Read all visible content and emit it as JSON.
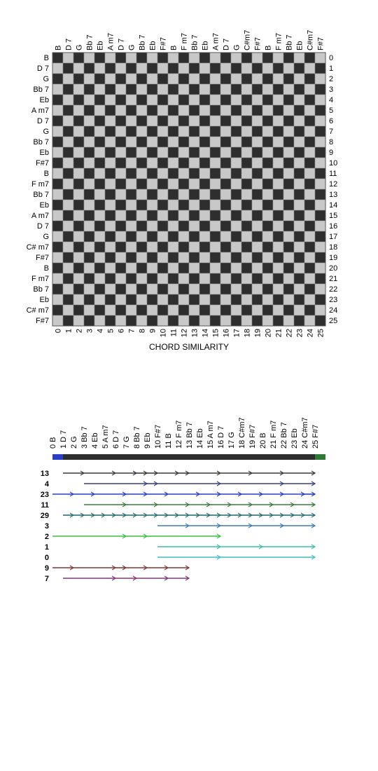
{
  "chords": [
    "B",
    "D 7",
    "G",
    "Bb 7",
    "Eb",
    "A m7",
    "D 7",
    "G",
    "Bb 7",
    "Eb",
    "F#7",
    "B",
    "F m7",
    "Bb 7",
    "Eb",
    "A m7",
    "D 7",
    "G",
    "C# m7",
    "F#7",
    "B",
    "F m7",
    "Bb 7",
    "Eb",
    "C# m7",
    "F#7"
  ],
  "top_labels": [
    "B",
    "D 7",
    "G",
    "Bb 7",
    "Eb",
    "A m7",
    "D 7",
    "G",
    "Bb 7",
    "Eb",
    "F#7",
    "B",
    "F m7",
    "Bb 7",
    "Eb",
    "A m7",
    "D 7",
    "G",
    "C#m7",
    "F#7",
    "B",
    "F m7",
    "Bb 7",
    "Eb",
    "C#m7",
    "F#7"
  ],
  "bottom_labels": [
    "0 B",
    "1 D 7",
    "2 G",
    "3 Bb 7",
    "4 Eb",
    "5 A m7",
    "6 D 7",
    "7 G",
    "8 Bb 7",
    "9 Eb",
    "10 F#7",
    "11 B",
    "12 F m7",
    "13 Bb 7",
    "14 Eb",
    "15 A m7",
    "16 D 7",
    "17 G",
    "18 C#m7",
    "19 F#7",
    "20 B",
    "21 F m7",
    "22 Bb 7",
    "23 Eb",
    "24 C#m7",
    "25 F#7"
  ],
  "matrix_title": "CHORD SIMILARITY",
  "colors": {
    "dark": "#2e2e2e",
    "light": "#c8c8c8",
    "bar_start": "#2a3ec7",
    "bar_mid": "#2e2e2e",
    "bar_end": "#2f7a33"
  },
  "patterns": [
    {
      "label": "13",
      "color": "#3a3a3a",
      "positions": [
        1,
        3,
        6,
        8,
        9,
        10,
        12,
        13,
        16,
        19,
        22,
        25
      ]
    },
    {
      "label": "4",
      "color": "#3b3f80",
      "positions": [
        3,
        9,
        10,
        16,
        22,
        25
      ]
    },
    {
      "label": "23",
      "color": "#2a3ec7",
      "positions": [
        0,
        2,
        4,
        7,
        9,
        11,
        14,
        16,
        18,
        20,
        22,
        24,
        25
      ]
    },
    {
      "label": "11",
      "color": "#3c7a3c",
      "positions": [
        3,
        7,
        10,
        13,
        15,
        17,
        19,
        21,
        23,
        25
      ]
    },
    {
      "label": "29",
      "color": "#2e6f73",
      "positions": [
        1,
        2,
        3,
        4,
        5,
        6,
        7,
        8,
        9,
        10,
        11,
        12,
        13,
        14,
        15,
        16,
        17,
        18,
        19,
        20,
        21,
        22,
        23,
        24,
        25
      ]
    },
    {
      "label": "3",
      "color": "#3d7ab5",
      "positions": [
        10,
        13,
        16,
        19,
        22,
        25
      ]
    },
    {
      "label": "2",
      "color": "#38c043",
      "positions": [
        0,
        7,
        9,
        16
      ]
    },
    {
      "label": "1",
      "color": "#3cbfa8",
      "positions": [
        10,
        16,
        20,
        25
      ]
    },
    {
      "label": "0",
      "color": "#3fbfc4",
      "positions": [
        10,
        16,
        25
      ]
    },
    {
      "label": "9",
      "color": "#7a3a3a",
      "positions": [
        0,
        2,
        6,
        7,
        9,
        11,
        13
      ]
    },
    {
      "label": "7",
      "color": "#7a3a7a",
      "positions": [
        1,
        6,
        8,
        11,
        13
      ]
    }
  ]
}
